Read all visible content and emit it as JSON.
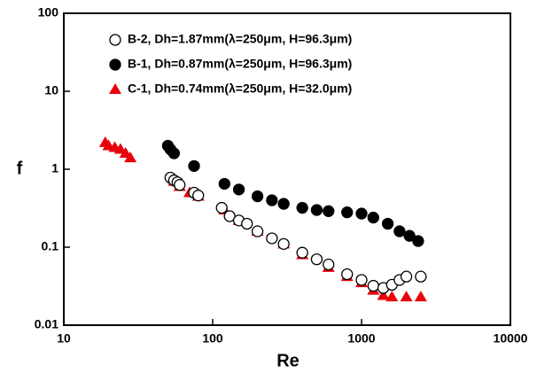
{
  "chart_data": {
    "type": "scatter",
    "x_label": "Re",
    "y_label": "f",
    "xlim": [
      10,
      10000
    ],
    "ylim": [
      0.01,
      100
    ],
    "xticks": [
      10,
      100,
      1000,
      10000
    ],
    "yticks": [
      0.01,
      0.1,
      1,
      10,
      100
    ],
    "xscale": "log",
    "yscale": "log",
    "legend": "upper-left",
    "series": [
      {
        "name": "B-2, Dh=1.87mm(λ=250μm, H=96.3μm)",
        "color": "#000000",
        "marker": "circle-open",
        "x": [
          52,
          55,
          58,
          60,
          75,
          80,
          115,
          130,
          150,
          170,
          200,
          250,
          300,
          400,
          500,
          600,
          800,
          1000,
          1200,
          1400,
          1600,
          1800,
          2000,
          2500
        ],
        "values": [
          0.78,
          0.72,
          0.68,
          0.63,
          0.5,
          0.46,
          0.32,
          0.25,
          0.22,
          0.2,
          0.16,
          0.13,
          0.11,
          0.085,
          0.07,
          0.06,
          0.045,
          0.038,
          0.032,
          0.03,
          0.033,
          0.038,
          0.042,
          0.042
        ]
      },
      {
        "name": "B-1, Dh=0.87mm(λ=250μm, H=96.3μm)",
        "color": "#000000",
        "marker": "circle",
        "x": [
          50,
          52,
          55,
          75,
          120,
          150,
          200,
          250,
          300,
          400,
          500,
          600,
          800,
          1000,
          1200,
          1500,
          1800,
          2100,
          2400
        ],
        "values": [
          2.0,
          1.8,
          1.6,
          1.1,
          0.65,
          0.55,
          0.45,
          0.4,
          0.36,
          0.32,
          0.3,
          0.29,
          0.28,
          0.27,
          0.24,
          0.2,
          0.16,
          0.14,
          0.12
        ]
      },
      {
        "name": "C-1, Dh=0.74mm(λ=250μm, H=32.0μm)",
        "color": "#e8000b",
        "marker": "triangle",
        "x": [
          19,
          20,
          22,
          24,
          26,
          28,
          55,
          60,
          70,
          80,
          120,
          150,
          200,
          300,
          400,
          600,
          800,
          1000,
          1200,
          1400,
          1600,
          2000,
          2500
        ],
        "values": [
          2.2,
          2.0,
          1.9,
          1.8,
          1.6,
          1.4,
          0.7,
          0.6,
          0.5,
          0.45,
          0.3,
          0.22,
          0.16,
          0.11,
          0.08,
          0.055,
          0.042,
          0.035,
          0.028,
          0.024,
          0.023,
          0.023,
          0.023
        ]
      }
    ]
  }
}
